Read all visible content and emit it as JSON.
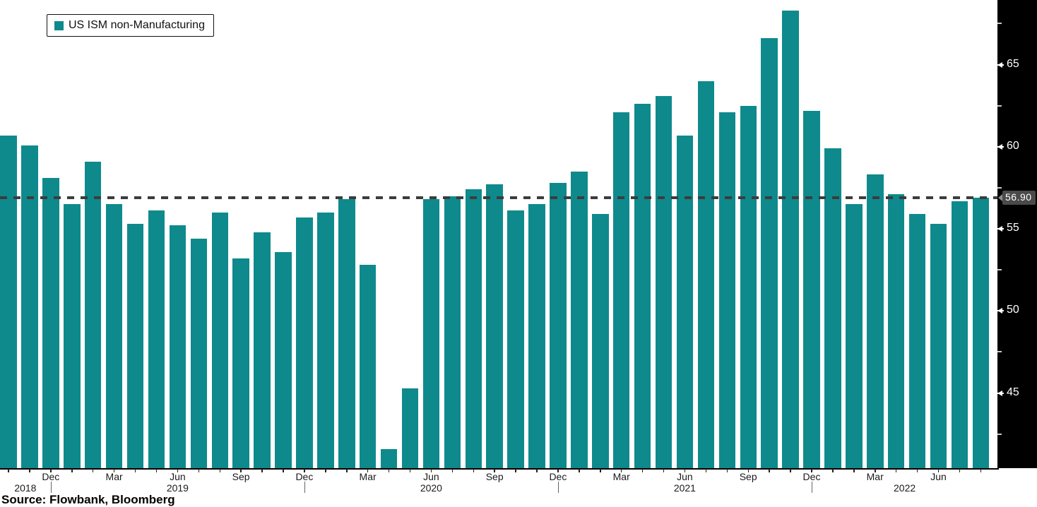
{
  "legend": {
    "label": "US ISM non-Manufacturing"
  },
  "source": {
    "label": "Source: Flowbank, Bloomberg"
  },
  "axis": {
    "last_value_label": "56.90"
  },
  "colors": {
    "bar": "#0e8a8d",
    "dashed_line": "#3c3c3c",
    "axis_strip_bg": "#000000",
    "axis_text": "#ffffff",
    "minor_tick": "#c9c9c9",
    "last_value_box": "#4a4a4a",
    "last_value_text": "#ffffff",
    "x_text": "#1a1a1a"
  },
  "chart_data": {
    "type": "bar",
    "title": "",
    "series_name": "US ISM non-Manufacturing",
    "x": [
      "2018-10",
      "2018-11",
      "2018-12",
      "2019-01",
      "2019-02",
      "2019-03",
      "2019-04",
      "2019-05",
      "2019-06",
      "2019-07",
      "2019-08",
      "2019-09",
      "2019-10",
      "2019-11",
      "2019-12",
      "2020-01",
      "2020-02",
      "2020-03",
      "2020-04",
      "2020-05",
      "2020-06",
      "2020-07",
      "2020-08",
      "2020-09",
      "2020-10",
      "2020-11",
      "2020-12",
      "2021-01",
      "2021-02",
      "2021-03",
      "2021-04",
      "2021-05",
      "2021-06",
      "2021-07",
      "2021-08",
      "2021-09",
      "2021-10",
      "2021-11",
      "2021-12",
      "2022-01",
      "2022-02",
      "2022-03",
      "2022-04",
      "2022-05",
      "2022-06",
      "2022-07",
      "2022-08"
    ],
    "values": [
      60.7,
      60.1,
      58.1,
      56.5,
      59.1,
      56.5,
      55.3,
      56.1,
      55.2,
      54.4,
      56.0,
      53.2,
      54.8,
      53.6,
      55.7,
      56.0,
      56.8,
      52.8,
      41.6,
      45.3,
      56.8,
      57.0,
      57.4,
      57.7,
      56.1,
      56.5,
      57.8,
      58.5,
      55.9,
      62.1,
      62.6,
      63.1,
      60.7,
      64.0,
      62.1,
      62.5,
      66.6,
      68.3,
      62.2,
      59.9,
      56.5,
      58.3,
      57.1,
      55.9,
      55.3,
      56.7,
      56.9
    ],
    "last_value": 56.9,
    "ylim": [
      40.42,
      68.94
    ],
    "y_ticks_major": [
      45,
      50,
      55,
      60,
      65
    ],
    "y_ticks_minor": [
      42.5,
      47.5,
      52.5,
      57.5,
      62.5,
      67.5
    ],
    "y_axis_side": "right",
    "grid": false,
    "legend_position": "top-left",
    "x_month_labels": [
      {
        "label": "Dec",
        "month_index": 2
      },
      {
        "label": "Mar",
        "month_index": 5
      },
      {
        "label": "Jun",
        "month_index": 8
      },
      {
        "label": "Sep",
        "month_index": 11
      },
      {
        "label": "Dec",
        "month_index": 14
      },
      {
        "label": "Mar",
        "month_index": 17
      },
      {
        "label": "Jun",
        "month_index": 20
      },
      {
        "label": "Sep",
        "month_index": 23
      },
      {
        "label": "Dec",
        "month_index": 26
      },
      {
        "label": "Mar",
        "month_index": 29
      },
      {
        "label": "Jun",
        "month_index": 32
      },
      {
        "label": "Sep",
        "month_index": 35
      },
      {
        "label": "Dec",
        "month_index": 38
      },
      {
        "label": "Mar",
        "month_index": 41
      },
      {
        "label": "Jun",
        "month_index": 44
      }
    ],
    "x_year_labels": [
      {
        "label": "2018",
        "anchor_month_index": 0.8
      },
      {
        "label": "2019",
        "anchor_month_index": 8
      },
      {
        "label": "2020",
        "anchor_month_index": 20
      },
      {
        "label": "2021",
        "anchor_month_index": 32
      },
      {
        "label": "2022",
        "anchor_month_index": 42.4
      }
    ],
    "year_divider_month_indices": [
      2,
      14,
      26,
      38
    ]
  }
}
